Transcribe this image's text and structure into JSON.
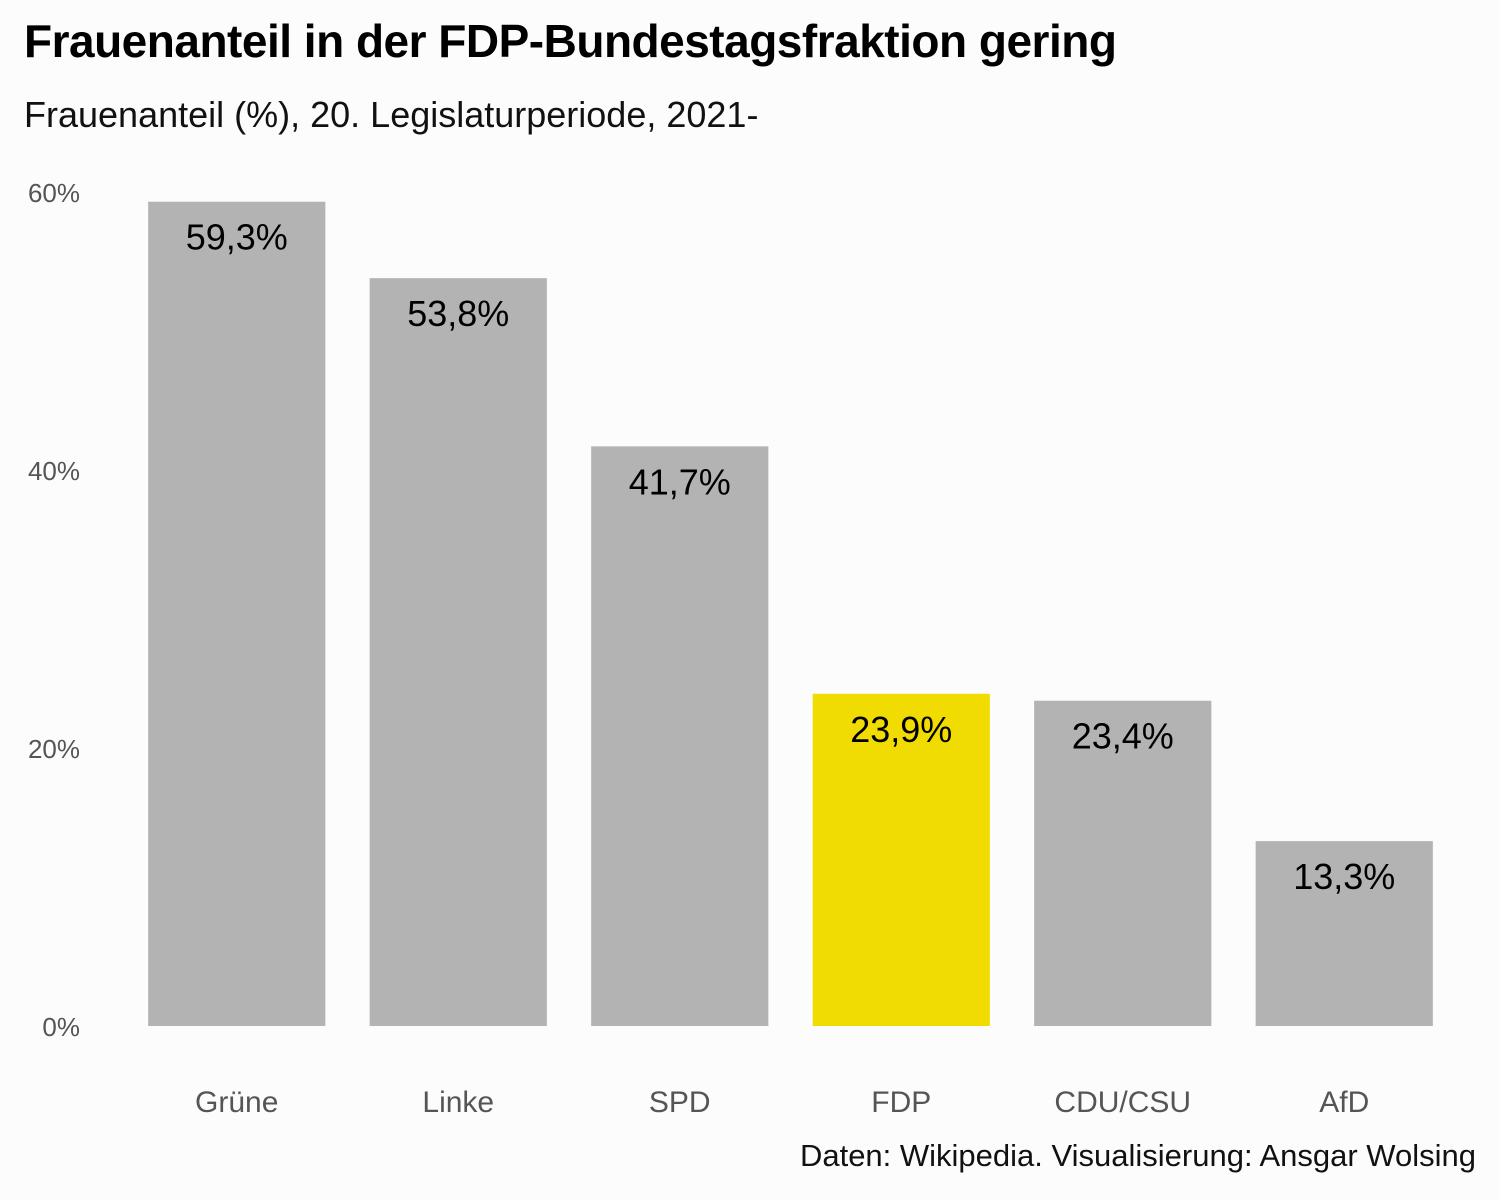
{
  "header": {
    "title": "Frauenanteil in der FDP-Bundestagsfraktion gering",
    "subtitle": "Frauenanteil (%), 20. Legislaturperiode, 2021-"
  },
  "footer": {
    "caption": "Daten: Wikipedia. Visualisierung: Ansgar Wolsing"
  },
  "chart_data": {
    "type": "bar",
    "categories": [
      "Grüne",
      "Linke",
      "SPD",
      "FDP",
      "CDU/CSU",
      "AfD"
    ],
    "values": [
      59.3,
      53.8,
      41.7,
      23.9,
      23.4,
      13.3
    ],
    "value_labels": [
      "59,3%",
      "53,8%",
      "41,7%",
      "23,9%",
      "23,4%",
      "13,3%"
    ],
    "highlight": "FDP",
    "colors": {
      "default": "#b3b3b3",
      "highlight": "#f0dc00"
    },
    "yticks": [
      0,
      20,
      40,
      60
    ],
    "ytick_labels": [
      "0%",
      "20%",
      "40%",
      "60%"
    ],
    "ylim": [
      0,
      60
    ],
    "grid": false,
    "legend": "none"
  }
}
